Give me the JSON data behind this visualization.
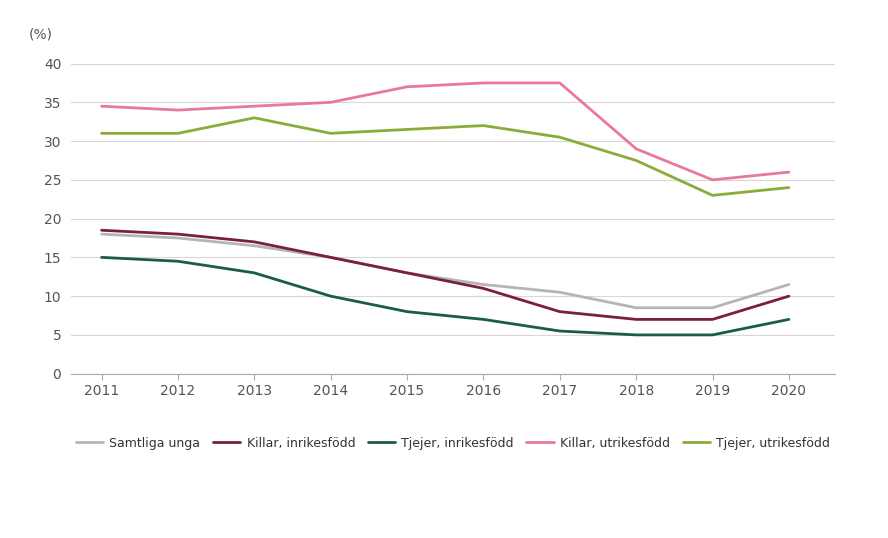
{
  "years": [
    2011,
    2012,
    2013,
    2014,
    2015,
    2016,
    2017,
    2018,
    2019,
    2020
  ],
  "samtliga_unga": [
    18.0,
    17.5,
    16.5,
    15.0,
    13.0,
    11.5,
    10.5,
    8.5,
    8.5,
    11.5
  ],
  "killar_inrikesfodd": [
    18.5,
    18.0,
    17.0,
    15.0,
    13.0,
    11.0,
    8.0,
    7.0,
    7.0,
    10.0
  ],
  "tjejer_inrikesfodd": [
    15.0,
    14.5,
    13.0,
    10.0,
    8.0,
    7.0,
    5.5,
    5.0,
    5.0,
    7.0
  ],
  "killar_utrikesfodd": [
    34.5,
    34.0,
    34.5,
    35.0,
    37.0,
    37.5,
    37.5,
    29.0,
    25.0,
    26.0
  ],
  "tjejer_utrikesfodd": [
    31.0,
    31.0,
    33.0,
    31.0,
    31.5,
    32.0,
    30.5,
    27.5,
    23.0,
    24.0
  ],
  "colors": {
    "samtliga_unga": "#b5b5b5",
    "killar_inrikesfodd": "#7b1f3a",
    "tjejer_inrikesfodd": "#1a5c4a",
    "killar_utrikesfodd": "#e8799a",
    "tjejer_utrikesfodd": "#8aad3a"
  },
  "legend_labels": [
    "Samtliga unga",
    "Killar, inrikesfödd",
    "Tjejer, inrikesfödd",
    "Killar, utrikesfödd",
    "Tjejer, utrikesfödd"
  ],
  "ylabel": "(%)",
  "ylim": [
    0,
    42
  ],
  "yticks": [
    0,
    5,
    10,
    15,
    20,
    25,
    30,
    35,
    40
  ],
  "background_color": "#ffffff",
  "grid_color": "#d8d8d8",
  "linewidth": 2.0
}
